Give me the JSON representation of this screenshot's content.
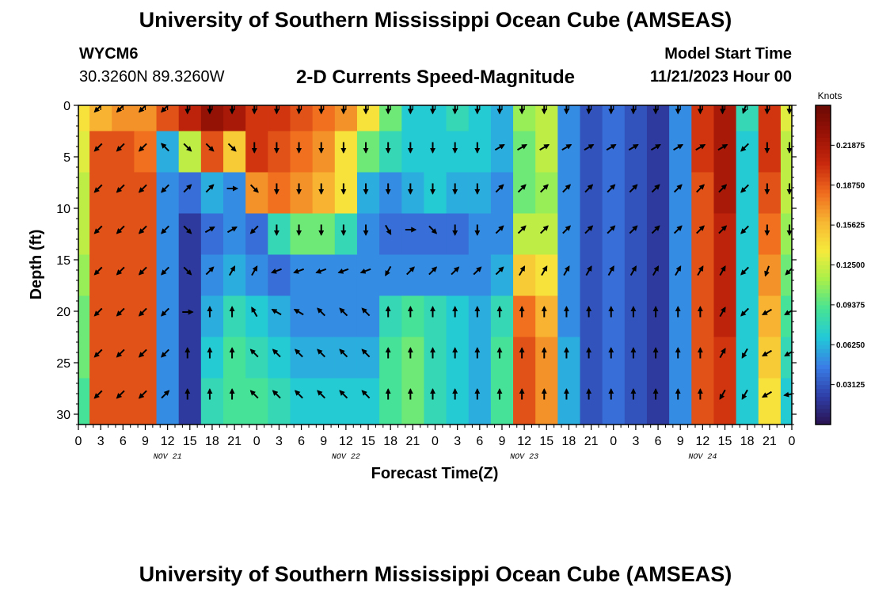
{
  "header": {
    "title": "University of Southern Mississippi Ocean Cube (AMSEAS)",
    "station": "WYCM6",
    "coords": "30.3260N  89.3260W",
    "chart_heading": "2-D Currents Speed-Magnitude",
    "model_label": "Model Start Time",
    "model_time": "11/21/2023 Hour 00"
  },
  "footer": {
    "title": "University of Southern Mississippi Ocean Cube (AMSEAS)"
  },
  "colors": {
    "scale": [
      "#2a1250",
      "#2f3fa8",
      "#3a7de6",
      "#22c9d8",
      "#47e394",
      "#a8f04a",
      "#f6ea3c",
      "#f7b632",
      "#ef6a1e",
      "#c8280d",
      "#9a1206",
      "#6a0a05"
    ]
  },
  "chart_data": {
    "type": "heatmap",
    "title": "2-D Currents Speed-Magnitude",
    "xlabel": "Forecast Time(Z)",
    "ylabel": "Depth (ft)",
    "xlim": [
      0,
      96
    ],
    "ylim": [
      31,
      0
    ],
    "x_ticks": [
      0,
      3,
      6,
      9,
      12,
      15,
      18,
      21,
      24,
      27,
      30,
      33,
      36,
      39,
      42,
      45,
      48,
      51,
      54,
      57,
      60,
      63,
      66,
      69,
      72,
      75,
      78,
      81,
      84,
      87,
      90,
      93,
      96
    ],
    "x_tick_labels": [
      "0",
      "3",
      "6",
      "9",
      "12",
      "15",
      "18",
      "21",
      "0",
      "3",
      "6",
      "9",
      "12",
      "15",
      "18",
      "21",
      "0",
      "3",
      "6",
      "9",
      "12",
      "15",
      "18",
      "21",
      "0",
      "3",
      "6",
      "9",
      "12",
      "15",
      "18",
      "21",
      "0"
    ],
    "date_labels": [
      {
        "label": "NOV 21",
        "hour": 12
      },
      {
        "label": "NOV 22",
        "hour": 36
      },
      {
        "label": "NOV 23",
        "hour": 60
      },
      {
        "label": "NOV 24",
        "hour": 84
      }
    ],
    "y_ticks": [
      0,
      5,
      10,
      15,
      20,
      25,
      30
    ],
    "colorbar": {
      "label": "Knots",
      "min": 0,
      "max": 0.25,
      "ticks": [
        0.03125,
        0.0625,
        0.09375,
        0.125,
        0.15625,
        0.1875,
        0.21875
      ],
      "tick_labels": [
        "0.03125",
        "0.06250",
        "0.09375",
        "0.12500",
        "0.15625",
        "0.18750",
        "0.21875"
      ]
    },
    "depths": [
      0.5,
      4.5,
      8.5,
      12.5,
      16.5,
      20.5,
      24.5,
      28.5
    ],
    "times": [
      0,
      3,
      6,
      9,
      12,
      15,
      18,
      21,
      24,
      27,
      30,
      33,
      36,
      39,
      42,
      45,
      48,
      51,
      54,
      57,
      60,
      63,
      66,
      69,
      72,
      75,
      78,
      81,
      84,
      87,
      90,
      93,
      96
    ],
    "speed_knots": [
      [
        0.14,
        0.16,
        0.17,
        0.17,
        0.19,
        0.21,
        0.23,
        0.22,
        0.2,
        0.2,
        0.19,
        0.18,
        0.17,
        0.14,
        0.1,
        0.07,
        0.07,
        0.08,
        0.07,
        0.06,
        0.11,
        0.12,
        0.05,
        0.03,
        0.04,
        0.03,
        0.02,
        0.05,
        0.2,
        0.22,
        0.08,
        0.2,
        0.13
      ],
      [
        0.13,
        0.19,
        0.19,
        0.18,
        0.06,
        0.12,
        0.19,
        0.15,
        0.2,
        0.19,
        0.18,
        0.17,
        0.14,
        0.1,
        0.08,
        0.07,
        0.07,
        0.07,
        0.07,
        0.06,
        0.1,
        0.12,
        0.05,
        0.03,
        0.04,
        0.03,
        0.02,
        0.05,
        0.2,
        0.22,
        0.07,
        0.2,
        0.12
      ],
      [
        0.12,
        0.19,
        0.19,
        0.19,
        0.05,
        0.04,
        0.06,
        0.05,
        0.17,
        0.18,
        0.17,
        0.16,
        0.14,
        0.06,
        0.05,
        0.06,
        0.07,
        0.06,
        0.06,
        0.05,
        0.1,
        0.11,
        0.05,
        0.03,
        0.04,
        0.03,
        0.02,
        0.05,
        0.19,
        0.22,
        0.07,
        0.19,
        0.12
      ],
      [
        0.12,
        0.19,
        0.19,
        0.19,
        0.05,
        0.02,
        0.04,
        0.05,
        0.04,
        0.08,
        0.1,
        0.1,
        0.08,
        0.05,
        0.04,
        0.04,
        0.04,
        0.04,
        0.05,
        0.05,
        0.12,
        0.12,
        0.05,
        0.03,
        0.04,
        0.03,
        0.02,
        0.05,
        0.19,
        0.21,
        0.07,
        0.18,
        0.11
      ],
      [
        0.11,
        0.19,
        0.19,
        0.19,
        0.05,
        0.02,
        0.05,
        0.06,
        0.05,
        0.04,
        0.05,
        0.05,
        0.05,
        0.05,
        0.05,
        0.05,
        0.05,
        0.05,
        0.05,
        0.06,
        0.15,
        0.14,
        0.05,
        0.03,
        0.04,
        0.03,
        0.02,
        0.05,
        0.19,
        0.21,
        0.07,
        0.17,
        0.1
      ],
      [
        0.1,
        0.19,
        0.19,
        0.19,
        0.05,
        0.02,
        0.06,
        0.08,
        0.07,
        0.06,
        0.05,
        0.05,
        0.05,
        0.05,
        0.08,
        0.09,
        0.08,
        0.07,
        0.06,
        0.08,
        0.18,
        0.16,
        0.05,
        0.03,
        0.04,
        0.03,
        0.02,
        0.05,
        0.19,
        0.21,
        0.07,
        0.16,
        0.09
      ],
      [
        0.1,
        0.19,
        0.19,
        0.19,
        0.05,
        0.02,
        0.07,
        0.09,
        0.08,
        0.07,
        0.06,
        0.06,
        0.06,
        0.06,
        0.09,
        0.1,
        0.08,
        0.07,
        0.06,
        0.09,
        0.19,
        0.17,
        0.06,
        0.03,
        0.04,
        0.03,
        0.02,
        0.05,
        0.19,
        0.2,
        0.07,
        0.15,
        0.08
      ],
      [
        0.09,
        0.19,
        0.19,
        0.19,
        0.05,
        0.02,
        0.08,
        0.09,
        0.09,
        0.08,
        0.07,
        0.07,
        0.07,
        0.07,
        0.09,
        0.1,
        0.08,
        0.07,
        0.06,
        0.09,
        0.19,
        0.17,
        0.06,
        0.03,
        0.04,
        0.03,
        0.02,
        0.05,
        0.19,
        0.2,
        0.07,
        0.14,
        0.07
      ]
    ],
    "vectors": {
      "depths": [
        0.2,
        4,
        8,
        12,
        16,
        20,
        24,
        28
      ],
      "times": [
        3,
        6,
        9,
        12,
        15,
        18,
        21,
        24,
        27,
        30,
        33,
        36,
        39,
        42,
        45,
        48,
        51,
        54,
        57,
        60,
        63,
        66,
        69,
        72,
        75,
        78,
        81,
        84,
        87,
        90,
        93,
        96
      ],
      "direction_deg": [
        [
          225,
          225,
          225,
          225,
          180,
          180,
          180,
          180,
          180,
          180,
          180,
          180,
          180,
          180,
          180,
          180,
          180,
          180,
          180,
          180,
          180,
          180,
          180,
          180,
          180,
          180,
          180,
          180,
          180,
          200,
          180,
          180
        ],
        [
          225,
          225,
          225,
          315,
          135,
          135,
          135,
          180,
          180,
          180,
          180,
          180,
          180,
          180,
          180,
          180,
          180,
          180,
          60,
          60,
          60,
          60,
          60,
          60,
          60,
          60,
          60,
          60,
          60,
          225,
          180,
          180
        ],
        [
          225,
          225,
          225,
          225,
          45,
          45,
          90,
          135,
          180,
          180,
          180,
          180,
          180,
          180,
          180,
          180,
          180,
          180,
          45,
          45,
          45,
          45,
          45,
          45,
          45,
          45,
          45,
          45,
          45,
          225,
          180,
          180
        ],
        [
          225,
          225,
          225,
          225,
          135,
          60,
          60,
          225,
          180,
          180,
          180,
          180,
          180,
          150,
          90,
          135,
          180,
          180,
          45,
          45,
          45,
          45,
          45,
          45,
          45,
          45,
          45,
          45,
          45,
          225,
          180,
          180
        ],
        [
          225,
          225,
          225,
          225,
          135,
          45,
          30,
          30,
          250,
          250,
          250,
          250,
          250,
          210,
          45,
          45,
          45,
          45,
          45,
          30,
          30,
          30,
          30,
          30,
          30,
          30,
          30,
          30,
          30,
          225,
          200,
          225
        ],
        [
          225,
          225,
          225,
          225,
          90,
          0,
          0,
          330,
          300,
          300,
          315,
          315,
          315,
          0,
          0,
          0,
          0,
          0,
          0,
          0,
          0,
          0,
          0,
          0,
          0,
          0,
          0,
          0,
          30,
          225,
          240,
          240
        ],
        [
          225,
          225,
          225,
          225,
          0,
          0,
          0,
          315,
          315,
          315,
          315,
          315,
          315,
          0,
          0,
          0,
          0,
          0,
          0,
          0,
          0,
          0,
          0,
          0,
          0,
          0,
          0,
          0,
          30,
          210,
          240,
          240
        ],
        [
          225,
          225,
          225,
          45,
          0,
          0,
          0,
          315,
          315,
          315,
          315,
          315,
          315,
          0,
          0,
          0,
          0,
          0,
          0,
          0,
          0,
          0,
          0,
          0,
          0,
          0,
          0,
          0,
          210,
          210,
          240,
          260
        ]
      ]
    }
  }
}
